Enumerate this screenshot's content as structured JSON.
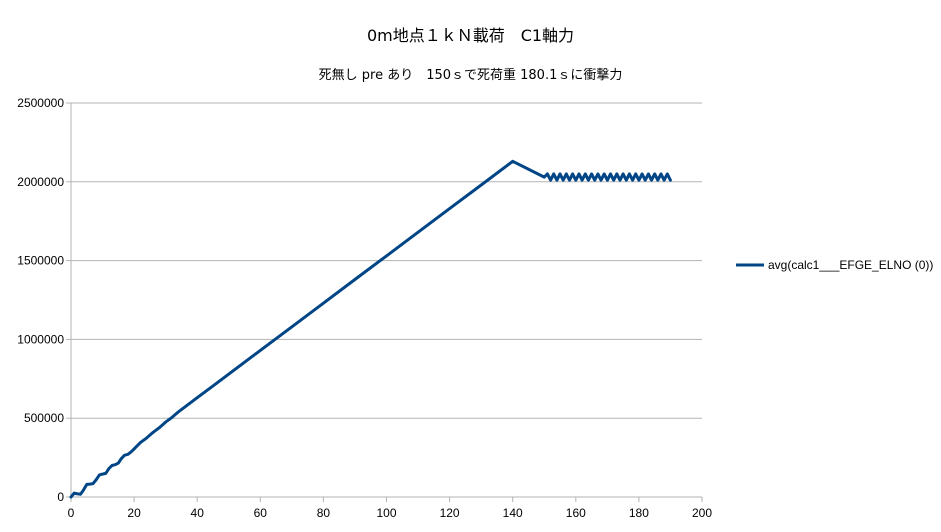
{
  "chart_data": {
    "type": "line",
    "title": "0m地点１ｋＮ載荷　C1軸力",
    "subtitle": "死無し pre あり　150ｓで死荷重 180.1ｓに衝撃力",
    "xlabel": "",
    "ylabel": "",
    "xlim": [
      0,
      200
    ],
    "ylim": [
      0,
      2500000
    ],
    "xticks": [
      0,
      20,
      40,
      60,
      80,
      100,
      120,
      140,
      160,
      180,
      200
    ],
    "yticks": [
      0,
      500000,
      1000000,
      1500000,
      2000000,
      2500000
    ],
    "grid": "horizontal",
    "legend_position": "right",
    "series": [
      {
        "name": "avg(calc1___EFGE_ELNO (0))",
        "color": "#004586",
        "x": [
          0,
          1,
          2,
          3,
          4,
          5,
          6,
          7,
          8,
          9,
          10,
          11,
          12,
          13,
          14,
          15,
          16,
          17,
          18,
          19,
          20,
          22,
          24,
          26,
          28,
          30,
          32,
          34,
          36,
          38,
          40,
          45,
          50,
          60,
          70,
          80,
          90,
          100,
          110,
          120,
          130,
          140,
          150,
          151,
          152,
          153,
          154,
          155,
          156,
          157,
          158,
          159,
          160,
          161,
          162,
          163,
          164,
          165,
          166,
          167,
          168,
          169,
          170,
          171,
          172,
          173,
          174,
          175,
          176,
          177,
          178,
          179,
          180,
          181,
          182,
          183,
          184,
          185,
          186,
          187,
          188,
          189,
          190
        ],
        "y": [
          0,
          25000,
          20000,
          18000,
          45000,
          80000,
          82000,
          85000,
          110000,
          140000,
          145000,
          150000,
          180000,
          200000,
          205000,
          215000,
          245000,
          265000,
          270000,
          285000,
          305000,
          345000,
          375000,
          410000,
          440000,
          475000,
          505000,
          540000,
          570000,
          600000,
          630000,
          705000,
          780000,
          930000,
          1080000,
          1230000,
          1380000,
          1530000,
          1680000,
          1830000,
          1980000,
          2130000,
          2030000,
          2050000,
          2010000,
          2050000,
          2010000,
          2050000,
          2010000,
          2050000,
          2010000,
          2050000,
          2010000,
          2050000,
          2010000,
          2050000,
          2010000,
          2050000,
          2010000,
          2050000,
          2010000,
          2050000,
          2010000,
          2050000,
          2010000,
          2050000,
          2010000,
          2050000,
          2010000,
          2050000,
          2010000,
          2050000,
          2010000,
          2050000,
          2010000,
          2050000,
          2010000,
          2050000,
          2010000,
          2050000,
          2010000,
          2050000,
          2010000
        ]
      }
    ]
  }
}
